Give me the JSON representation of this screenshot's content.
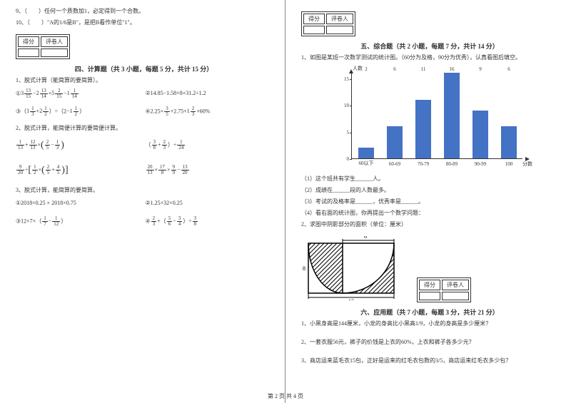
{
  "left": {
    "q9": "9、（　　）任何一个质数加1，必定得到一个合数。",
    "q10": "10、（　　）\"A的1/6是B\"，是把B看作单位\"1\"。",
    "scorebox": {
      "c1": "得分",
      "c2": "评卷人"
    },
    "sec4_title": "四、计算题（共 3 小题，每题 5 分，共计 15 分）",
    "s4_1": "1、脱式计算（能简算的要简算）。",
    "s4_1_eq1_lead": "①",
    "s4_1_eq2": "②14.85−1.58×8+31.2÷1.2",
    "s4_1_eq3_lead": "③",
    "s4_1_eq4_lead": "④2.25×",
    "s4_1_eq4_tail": "+60%",
    "s4_2": "2、脱式计算，能简便计算的要简便计算。",
    "s4_3": "3、脱式计算，能简算的要简算。",
    "s4_3_eq1": "①2018×0.25 + 2018×0.75",
    "s4_3_eq2": "②1.25×32×0.25",
    "s4_3_eq3_lead": "③12×7×（",
    "s4_3_eq3_tail": "）",
    "s4_3_eq4_lead": "④",
    "frac": {
      "3_13_15_w": "3",
      "3_13_15_n": "13",
      "3_13_15_d": "15",
      "2_13_14_w": "2",
      "2_13_14_n": "13",
      "2_13_14_d": "14",
      "5_2_15_w": "5",
      "5_2_15_n": "2",
      "5_2_15_d": "15",
      "1_1_14_w": "1",
      "1_1_14_n": "1",
      "1_1_14_d": "14",
      "1_1_3_w": "1",
      "1_1_3_n": "1",
      "1_1_3_d": "3",
      "2_1_2_w": "2",
      "2_1_2_n": "1",
      "2_1_2_d": "2",
      "2_1n": "2",
      "1_1d": "1",
      "1_1_2_w": "1",
      "1_1_2_n": "1",
      "1_1_2_d": "2",
      "3_5n": "3",
      "3_5d": "5",
      "2_75": "2.75",
      "1_2_3_w": "1",
      "1_2_3_n": "2",
      "1_2_3_d": "3",
      "1_13n": "1",
      "1_13d": "13",
      "12_13n": "12",
      "12_13d": "13",
      "2_5n": "2",
      "2_5d": "5",
      "1_3n": "1",
      "1_3d": "3",
      "3_8n": "3",
      "3_8d": "8",
      "2_3n": "2",
      "2_3d": "3",
      "1_24n": "1",
      "1_24d": "24",
      "9_20n": "9",
      "9_20d": "20",
      "1_2n": "1",
      "1_2d": "2",
      "4_5n": "4",
      "4_5d": "5",
      "20_13n": "20",
      "20_13d": "13",
      "17_8n": "17",
      "17_8d": "8",
      "9_9n": "9",
      "9_9d": "9",
      "13_20n": "13",
      "13_20d": "20",
      "1_7n": "1",
      "1_7d": "7",
      "1_12n": "1",
      "1_12d": "12",
      "5_6n": "5",
      "5_6d": "6",
      "3_4n": "3",
      "3_4d": "4"
    }
  },
  "right": {
    "scorebox": {
      "c1": "得分",
      "c2": "评卷人"
    },
    "sec5_title": "五、综合题（共 2 小题，每题 7 分，共计 14 分）",
    "s5_1": "1、如图是某班一次数学测试的统计图。（60分为及格，90分为优秀），认真看图后填空。",
    "chart": {
      "type": "bar",
      "ylabel": "人数",
      "xlabel": "分数",
      "categories": [
        "60以下",
        "60-69",
        "70-79",
        "80-89",
        "90-99",
        "100"
      ],
      "values": [
        2,
        6,
        11,
        16,
        9,
        6
      ],
      "bar_color": "#4472c4",
      "ylim_max": 16,
      "yticks": [
        0,
        5,
        10,
        15
      ],
      "background_color": "#ffffff"
    },
    "s5_sub1": "（1）这个班共有学生______人。",
    "s5_sub2": "（2）成绩在______段的人数最多。",
    "s5_sub3": "（3）考试的及格率是______，优秀率是______。",
    "s5_sub4": "（4）看右面的统计图，你再提出一个数学问题：",
    "s5_2": "2、求图中阴影部分的面积（单位：厘米）",
    "shaded": {
      "outer_w": 10,
      "outer_h": 8,
      "inset_w": 6,
      "stroke": "#000000",
      "hatch_color": "#000000"
    },
    "sec6_title": "六、应用题（共 7 小题，每题 3 分，共计 21 分）",
    "s6_1": "1、小黑身高是144厘米，小龙的身高比小黑高1/9，小龙的身高是多少厘米？",
    "s6_2": "2、一套衣服56元，裤子的价钱是上衣的60%，上衣和裤子各多少元？",
    "s6_3": "3、商店运来蓝毛衣15包，正好是运来的红毛衣包数的3/5，商店运来红毛衣多少包？"
  },
  "footer": "第 2 页 共 4 页"
}
